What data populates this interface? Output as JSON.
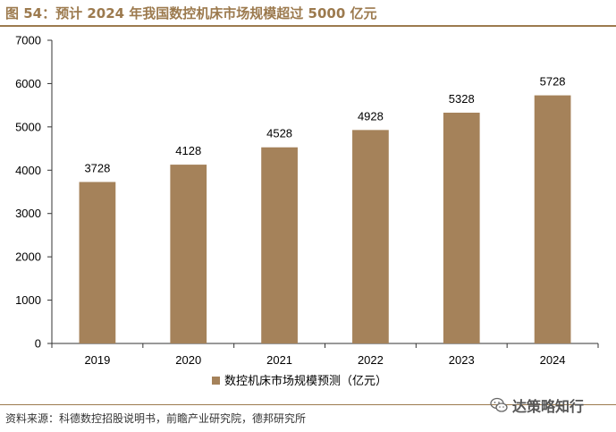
{
  "header": {
    "title": "图 54：预计 2024 年我国数控机床市场规模超过 5000 亿元"
  },
  "footer": {
    "source": "资料来源：科德数控招股说明书，前瞻产业研究院，德邦研究所",
    "watermark": "达策略知行",
    "watermark_icon": "wechat-icon"
  },
  "colors": {
    "bar": "#a5825a",
    "accent": "#9c7a4e"
  },
  "chart_data": {
    "type": "bar",
    "title": "",
    "xlabel": "",
    "ylabel": "",
    "categories": [
      "2019",
      "2020",
      "2021",
      "2022",
      "2023",
      "2024"
    ],
    "series": [
      {
        "name": "数控机床市场规模预测（亿元）",
        "values": [
          3728,
          4128,
          4528,
          4928,
          5328,
          5728
        ]
      }
    ],
    "ylim": [
      0,
      7000
    ],
    "yticks": [
      0,
      1000,
      2000,
      3000,
      4000,
      5000,
      6000,
      7000
    ],
    "grid": false,
    "legend_position": "bottom-center",
    "data_labels": true
  }
}
